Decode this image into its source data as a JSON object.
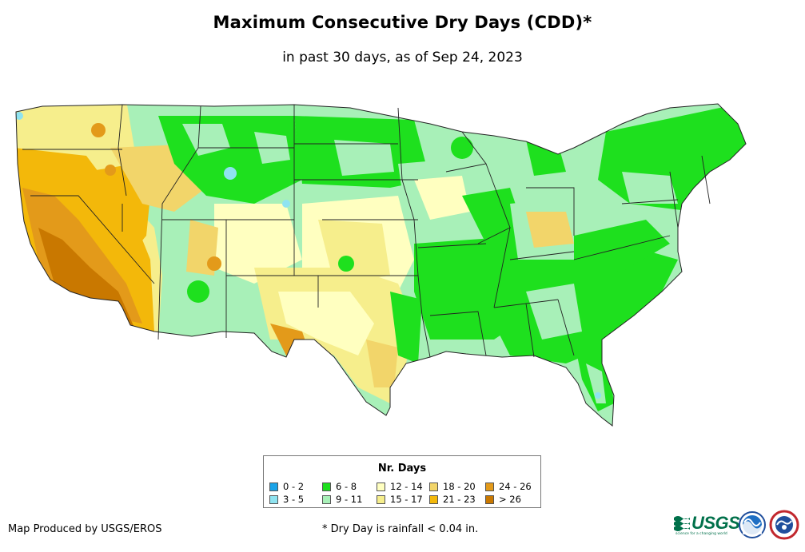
{
  "title": "Maximum Consecutive Dry Days (CDD)*",
  "subtitle": "in past 30 days, as of Sep 24, 2023",
  "legend": {
    "title": "Nr. Days",
    "items": [
      {
        "label": "0 - 2",
        "color": "#1aa3e8"
      },
      {
        "label": "3 - 5",
        "color": "#8fe3f0"
      },
      {
        "label": "6 - 8",
        "color": "#1ee01e"
      },
      {
        "label": "9 - 11",
        "color": "#a8f0b8"
      },
      {
        "label": "12 - 14",
        "color": "#ffffc0"
      },
      {
        "label": "15 - 17",
        "color": "#f6ee8c"
      },
      {
        "label": "18 - 20",
        "color": "#f2d56a"
      },
      {
        "label": "21 - 23",
        "color": "#f3b80a"
      },
      {
        "label": "24 - 26",
        "color": "#e39a1a"
      },
      {
        "label": "> 26",
        "color": "#c97800"
      }
    ]
  },
  "credit": "Map Produced by USGS/EROS",
  "footnote": "* Dry Day is rainfall < 0.04 in.",
  "logos": {
    "usgs": "USGS",
    "usgs_tagline": "science for a changing world",
    "noaa": "NOAA",
    "nws": "NWS"
  },
  "map": {
    "region": "Contiguous United States",
    "dominant_class_by_region": [
      {
        "region": "Pacific Coast / California",
        "class": "> 26"
      },
      {
        "region": "Great Basin",
        "class": "21 - 23"
      },
      {
        "region": "Northern Rockies",
        "class": "6 - 8"
      },
      {
        "region": "Central Plains",
        "class": "12 - 14"
      },
      {
        "region": "Texas",
        "class": "15 - 17"
      },
      {
        "region": "Southeast",
        "class": "6 - 8"
      },
      {
        "region": "Northeast",
        "class": "6 - 8"
      },
      {
        "region": "Ohio Valley",
        "class": "9 - 11"
      }
    ]
  }
}
